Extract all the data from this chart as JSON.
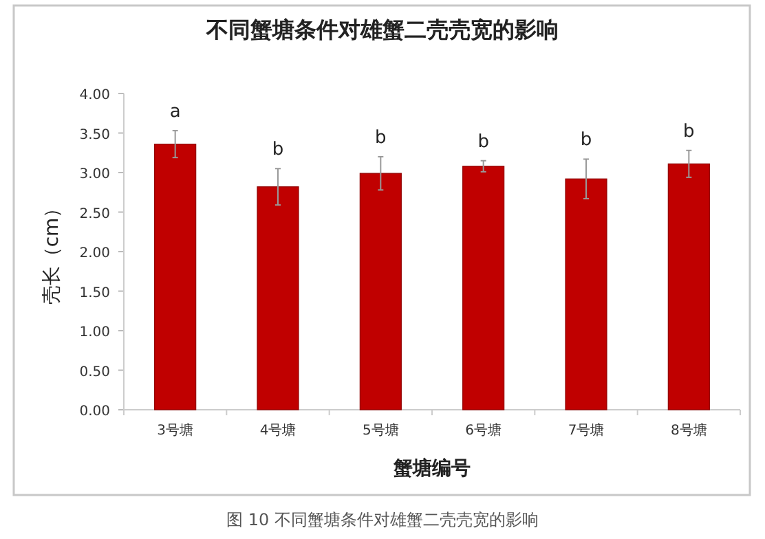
{
  "chart_data": {
    "type": "bar",
    "title": "不同蟹塘条件对雄蟹二壳壳宽的影响",
    "xlabel": "蟹塘编号",
    "ylabel": "壳长（cm）",
    "categories": [
      "3号塘",
      "4号塘",
      "5号塘",
      "6号塘",
      "7号塘",
      "8号塘"
    ],
    "values": [
      3.36,
      2.82,
      2.99,
      3.08,
      2.92,
      3.11
    ],
    "errors": [
      0.17,
      0.23,
      0.21,
      0.07,
      0.25,
      0.17
    ],
    "color": "#c00000",
    "ylim": [
      0,
      4
    ],
    "yticks": [
      {
        "value": 0,
        "label": "0.00"
      },
      {
        "value": 0.5,
        "label": "0.50"
      },
      {
        "value": 1,
        "label": "1.00"
      },
      {
        "value": 1.5,
        "label": "1.50"
      },
      {
        "value": 2,
        "label": "2.00"
      },
      {
        "value": 2.5,
        "label": "2.50"
      },
      {
        "value": 3,
        "label": "3.00"
      },
      {
        "value": 3.5,
        "label": "3.50"
      },
      {
        "value": 4,
        "label": "4.00"
      }
    ],
    "annotations": [
      {
        "text": "a",
        "x": "3号塘",
        "y": 3.53
      },
      {
        "text": "b",
        "x": "4号塘",
        "y": 3.05
      },
      {
        "text": "b",
        "x": "5号塘",
        "y": 3.2
      },
      {
        "text": "b",
        "x": "6号塘",
        "y": 3.15
      },
      {
        "text": "b",
        "x": "7号塘",
        "y": 3.17
      },
      {
        "text": "b",
        "x": "8号塘",
        "y": 3.28
      },
      "图 10  不同蟹塘条件对雄蟹二壳壳宽的影响"
    ]
  }
}
